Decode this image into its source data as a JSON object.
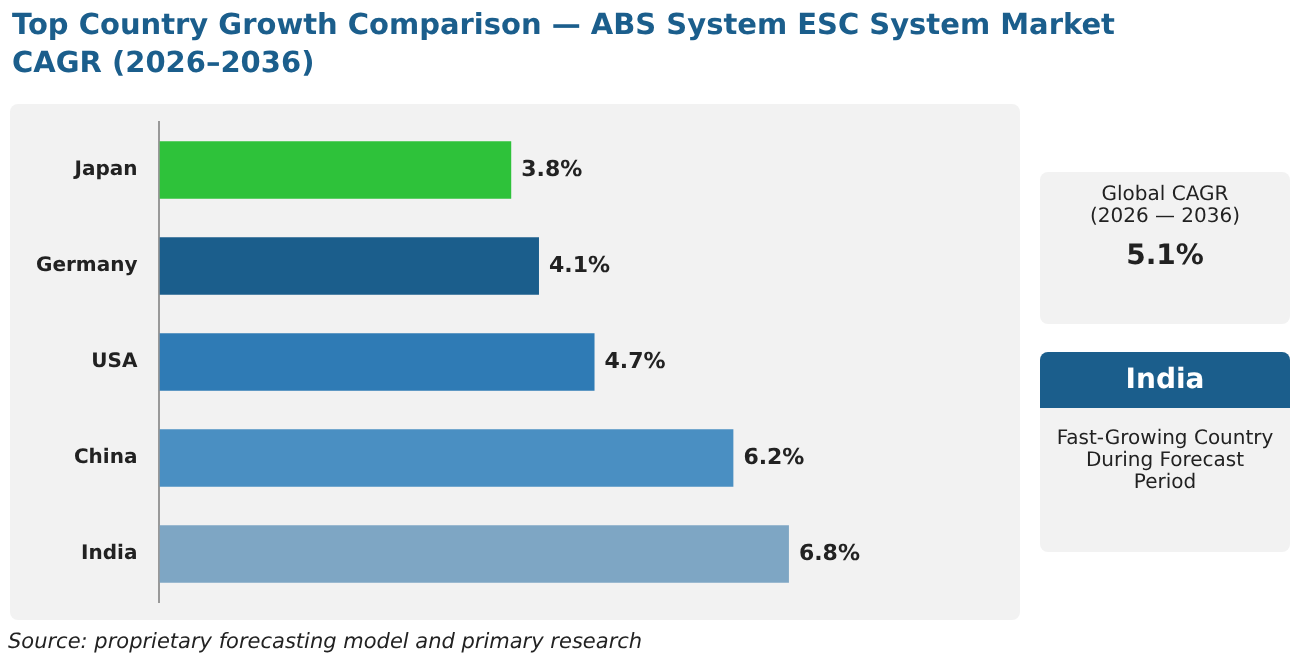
{
  "chart_data": {
    "type": "bar",
    "orientation": "horizontal",
    "title": "Top Country Growth Comparison — ABS System ESC System Market CAGR (2026–2036)",
    "categories": [
      "Japan",
      "Germany",
      "USA",
      "China",
      "India"
    ],
    "values": [
      3.8,
      4.1,
      4.7,
      6.2,
      6.8
    ],
    "colors": [
      "#2ec23a",
      "#1b5e8c",
      "#2f7bb5",
      "#4a8fc2",
      "#7ea6c4"
    ],
    "data_labels": true,
    "value_labels": [
      "3.8%",
      "4.1%",
      "4.7%",
      "6.2%",
      "6.8%"
    ],
    "grid": false,
    "legend": false,
    "tick_labels": "y",
    "annotations": [
      "Global CAGR",
      "(2026 — 2036)",
      "5.1%",
      "India",
      "Fast-Growing Country During Forecast Period",
      "Source: proprietary forecasting model and primary research"
    ]
  }
}
